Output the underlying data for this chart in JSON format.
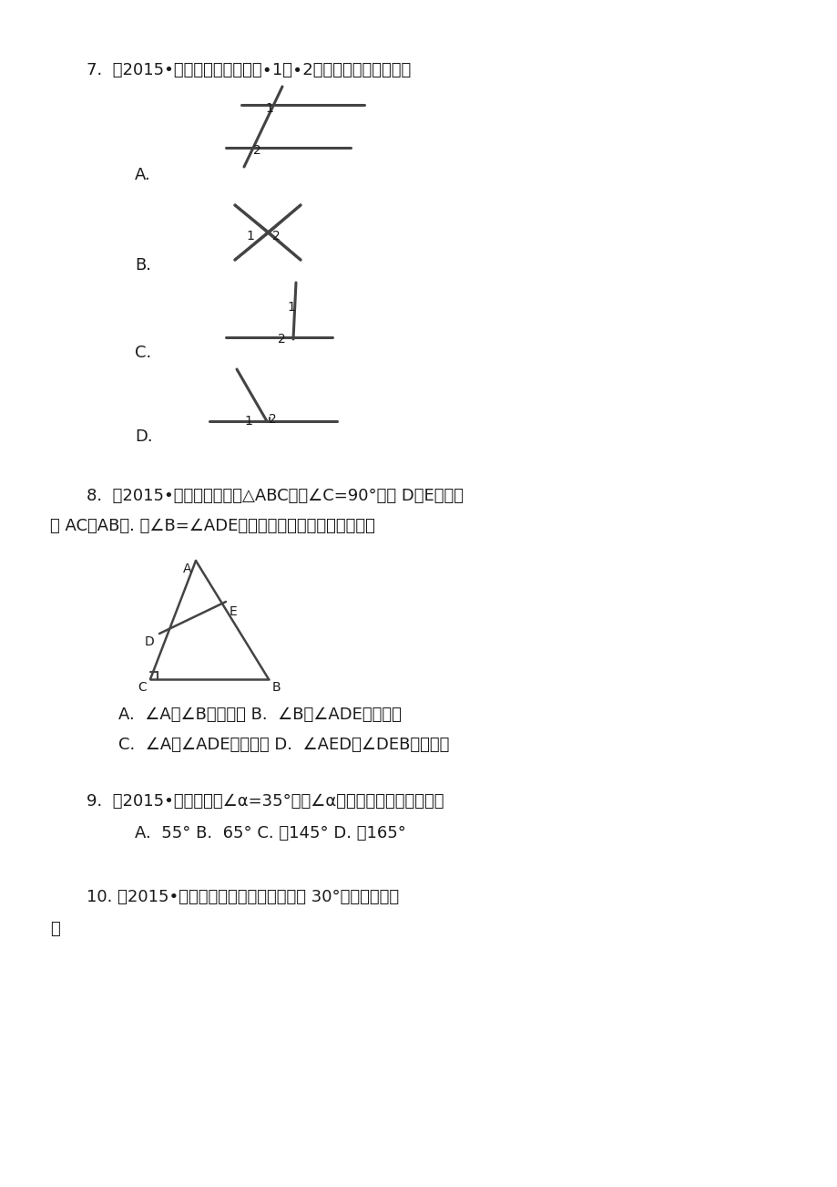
{
  "background_color": "#ffffff",
  "page_width": 9.2,
  "page_height": 13.02,
  "text_color": "#1a1a1a",
  "line_color": "#444444",
  "q7_text": "7.  （2015•广西）下列各图中，∙1与∙2互为余角的是（　　）",
  "q8_line1": "8.  （2015•厦门）如图，在△ABC中，∠C=90°，点 D，E分别在",
  "q8_line2": "边 AC，AB上. 若∠B=∠ADE，则下列结论正确的是（　　）",
  "q8_optA": "A.  ∠A和∠B互为补角 B.  ∠B和∠ADE互为补角",
  "q8_optC": "C.  ∠A和∠ADE互为余角 D.  ∠AED和∠DEB互为余角",
  "q9_text": "9.  （2015•金华）已知∠α=35°，则∠α的补角的度数是（　　）",
  "q9_opts": "A.  55° B.  65° C. 　145° D. 　165°",
  "q10_text": "10. （2015•玉林）下面角的图示中，能与 30°角互补的是（",
  "q10_close": "）"
}
